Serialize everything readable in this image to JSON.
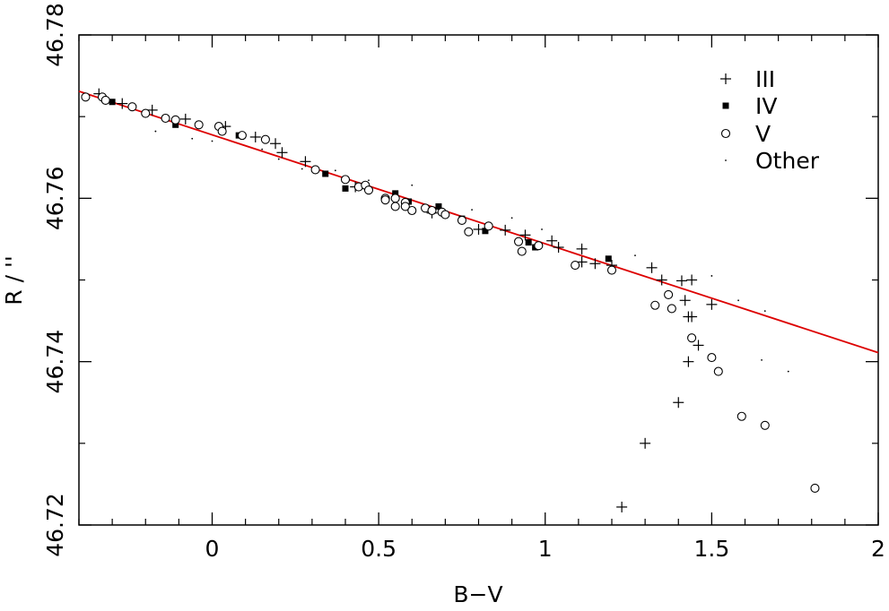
{
  "chart_data": {
    "type": "scatter",
    "xlabel": "B−V",
    "ylabel": "R / ''",
    "xlim": [
      -0.4,
      2.0
    ],
    "ylim": [
      46.72,
      46.78
    ],
    "xticks": [
      0,
      0.5,
      1,
      1.5,
      2
    ],
    "xtick_labels": [
      "0",
      "0.5",
      "1",
      "1.5",
      "2"
    ],
    "yticks": [
      46.72,
      46.74,
      46.76,
      46.78
    ],
    "ytick_labels": [
      "46.72",
      "46.74",
      "46.76",
      "46.78"
    ],
    "grid": false,
    "legend_position": "top-right",
    "fit_line": {
      "color": "#dd0000",
      "points": [
        [
          -0.4,
          46.7731
        ],
        [
          2.0,
          46.7411
        ]
      ]
    },
    "series": [
      {
        "name": "III",
        "marker": "plus",
        "points": [
          [
            -0.34,
            46.7728
          ],
          [
            -0.27,
            46.7716
          ],
          [
            -0.18,
            46.7708
          ],
          [
            -0.08,
            46.7697
          ],
          [
            0.04,
            46.7688
          ],
          [
            0.13,
            46.7675
          ],
          [
            0.19,
            46.7667
          ],
          [
            0.21,
            46.7656
          ],
          [
            0.28,
            46.7645
          ],
          [
            0.43,
            46.7614
          ],
          [
            0.66,
            46.7582
          ],
          [
            0.8,
            46.7562
          ],
          [
            0.88,
            46.7561
          ],
          [
            0.94,
            46.7555
          ],
          [
            1.02,
            46.7548
          ],
          [
            1.04,
            46.754
          ],
          [
            1.11,
            46.7538
          ],
          [
            1.11,
            46.7522
          ],
          [
            1.15,
            46.752
          ],
          [
            1.2,
            46.7518
          ],
          [
            1.32,
            46.7515
          ],
          [
            1.35,
            46.75
          ],
          [
            1.41,
            46.7499
          ],
          [
            1.44,
            46.75
          ],
          [
            1.42,
            46.7475
          ],
          [
            1.43,
            46.7455
          ],
          [
            1.44,
            46.7455
          ],
          [
            1.46,
            46.742
          ],
          [
            1.43,
            46.74
          ],
          [
            1.4,
            46.735
          ],
          [
            1.3,
            46.73
          ],
          [
            1.23,
            46.7222
          ],
          [
            1.5,
            46.747
          ]
        ]
      },
      {
        "name": "IV",
        "marker": "filled-square",
        "points": [
          [
            -0.3,
            46.7718
          ],
          [
            -0.11,
            46.769
          ],
          [
            -0.04,
            46.769
          ],
          [
            0.08,
            46.7677
          ],
          [
            0.34,
            46.763
          ],
          [
            0.4,
            46.7612
          ],
          [
            0.55,
            46.7606
          ],
          [
            0.59,
            46.7596
          ],
          [
            0.68,
            46.759
          ],
          [
            0.75,
            46.7575
          ],
          [
            0.82,
            46.756
          ],
          [
            0.95,
            46.7546
          ],
          [
            0.97,
            46.754
          ],
          [
            1.19,
            46.7526
          ]
        ]
      },
      {
        "name": "V",
        "marker": "open-circle",
        "points": [
          [
            -0.38,
            46.7724
          ],
          [
            -0.33,
            46.7724
          ],
          [
            -0.32,
            46.772
          ],
          [
            -0.24,
            46.7712
          ],
          [
            -0.2,
            46.7704
          ],
          [
            -0.14,
            46.7698
          ],
          [
            -0.11,
            46.7696
          ],
          [
            -0.04,
            46.769
          ],
          [
            0.02,
            46.7688
          ],
          [
            0.03,
            46.7682
          ],
          [
            0.09,
            46.7677
          ],
          [
            0.16,
            46.7672
          ],
          [
            0.31,
            46.7635
          ],
          [
            0.4,
            46.7623
          ],
          [
            0.44,
            46.7614
          ],
          [
            0.46,
            46.7616
          ],
          [
            0.47,
            46.761
          ],
          [
            0.52,
            46.76
          ],
          [
            0.52,
            46.7598
          ],
          [
            0.55,
            46.76
          ],
          [
            0.55,
            46.759
          ],
          [
            0.58,
            46.7595
          ],
          [
            0.58,
            46.759
          ],
          [
            0.6,
            46.7585
          ],
          [
            0.64,
            46.7588
          ],
          [
            0.66,
            46.7585
          ],
          [
            0.69,
            46.7583
          ],
          [
            0.7,
            46.758
          ],
          [
            0.75,
            46.7573
          ],
          [
            0.77,
            46.7559
          ],
          [
            0.83,
            46.7566
          ],
          [
            0.92,
            46.7547
          ],
          [
            0.93,
            46.7535
          ],
          [
            0.98,
            46.7542
          ],
          [
            1.09,
            46.7518
          ],
          [
            1.2,
            46.7512
          ],
          [
            1.33,
            46.7469
          ],
          [
            1.37,
            46.7482
          ],
          [
            1.38,
            46.7465
          ],
          [
            1.44,
            46.7429
          ],
          [
            1.5,
            46.7405
          ],
          [
            1.52,
            46.7388
          ],
          [
            1.59,
            46.7333
          ],
          [
            1.66,
            46.7322
          ],
          [
            1.81,
            46.7245
          ]
        ]
      },
      {
        "name": "Other",
        "marker": "dot",
        "points": [
          [
            -0.17,
            46.7682
          ],
          [
            -0.06,
            46.7673
          ],
          [
            0.0,
            46.767
          ],
          [
            0.15,
            46.766
          ],
          [
            0.2,
            46.7648
          ],
          [
            0.27,
            46.7636
          ],
          [
            0.37,
            46.7634
          ],
          [
            0.47,
            46.7622
          ],
          [
            0.6,
            46.7616
          ],
          [
            0.78,
            46.7586
          ],
          [
            0.9,
            46.7576
          ],
          [
            0.99,
            46.7562
          ],
          [
            1.27,
            46.753
          ],
          [
            1.5,
            46.7505
          ],
          [
            1.58,
            46.7475
          ],
          [
            1.66,
            46.7462
          ],
          [
            1.65,
            46.7402
          ],
          [
            1.73,
            46.7388
          ]
        ]
      }
    ]
  }
}
